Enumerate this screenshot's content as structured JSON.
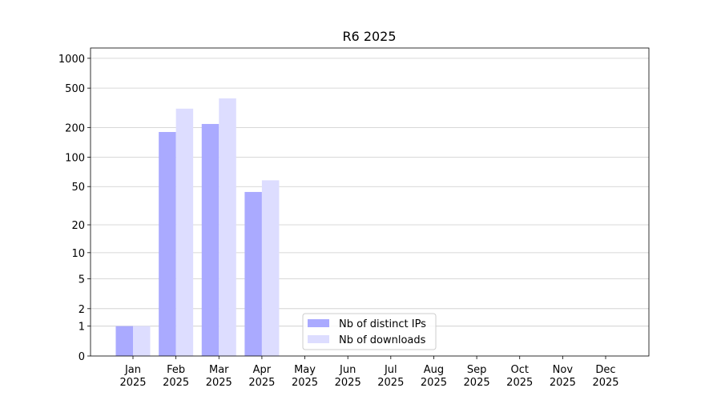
{
  "chart_data": {
    "type": "bar",
    "title": "R6 2025",
    "categories": [
      "Jan\n2025",
      "Feb\n2025",
      "Mar\n2025",
      "Apr\n2025",
      "May\n2025",
      "Jun\n2025",
      "Jul\n2025",
      "Aug\n2025",
      "Sep\n2025",
      "Oct\n2025",
      "Nov\n2025",
      "Dec\n2025"
    ],
    "series": [
      {
        "name": "Nb of distinct IPs",
        "color": "#aaaaff",
        "values": [
          1,
          180,
          217,
          44,
          0,
          0,
          0,
          0,
          0,
          0,
          0,
          0
        ]
      },
      {
        "name": "Nb of downloads",
        "color": "#ddddff",
        "values": [
          1,
          310,
          394,
          58,
          0,
          0,
          0,
          0,
          0,
          0,
          0,
          0
        ]
      }
    ],
    "ylim": [
      0,
      1270
    ],
    "yticks": [
      0,
      1,
      2,
      5,
      10,
      20,
      50,
      100,
      200,
      500,
      1000
    ],
    "yscale": "symlog",
    "grid": true,
    "legend": "lower center"
  }
}
